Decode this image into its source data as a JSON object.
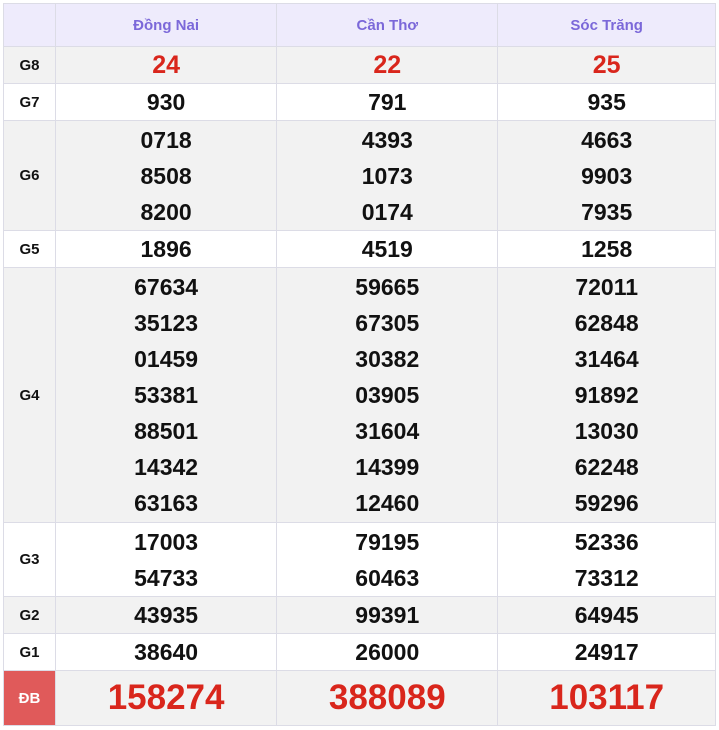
{
  "provinces": [
    "Đồng Nai",
    "Cần Thơ",
    "Sóc Trăng"
  ],
  "rows": [
    {
      "label": "G8",
      "values": [
        [
          "24"
        ],
        [
          "22"
        ],
        [
          "25"
        ]
      ]
    },
    {
      "label": "G7",
      "values": [
        [
          "930"
        ],
        [
          "791"
        ],
        [
          "935"
        ]
      ]
    },
    {
      "label": "G6",
      "values": [
        [
          "0718",
          "8508",
          "8200"
        ],
        [
          "4393",
          "1073",
          "0174"
        ],
        [
          "4663",
          "9903",
          "7935"
        ]
      ]
    },
    {
      "label": "G5",
      "values": [
        [
          "1896"
        ],
        [
          "4519"
        ],
        [
          "1258"
        ]
      ]
    },
    {
      "label": "G4",
      "values": [
        [
          "67634",
          "35123",
          "01459",
          "53381",
          "88501",
          "14342",
          "63163"
        ],
        [
          "59665",
          "67305",
          "30382",
          "03905",
          "31604",
          "14399",
          "12460"
        ],
        [
          "72011",
          "62848",
          "31464",
          "91892",
          "13030",
          "62248",
          "59296"
        ]
      ]
    },
    {
      "label": "G3",
      "values": [
        [
          "17003",
          "54733"
        ],
        [
          "79195",
          "60463"
        ],
        [
          "52336",
          "73312"
        ]
      ]
    },
    {
      "label": "G2",
      "values": [
        [
          "43935"
        ],
        [
          "99391"
        ],
        [
          "64945"
        ]
      ]
    },
    {
      "label": "G1",
      "values": [
        [
          "38640"
        ],
        [
          "26000"
        ],
        [
          "24917"
        ]
      ]
    },
    {
      "label": "ĐB",
      "values": [
        [
          "158274"
        ],
        [
          "388089"
        ],
        [
          "103117"
        ]
      ]
    }
  ],
  "colors": {
    "header_text": "#7b68d9",
    "prize_red": "#d9261c",
    "special_label_bg": "#e05a5a"
  }
}
